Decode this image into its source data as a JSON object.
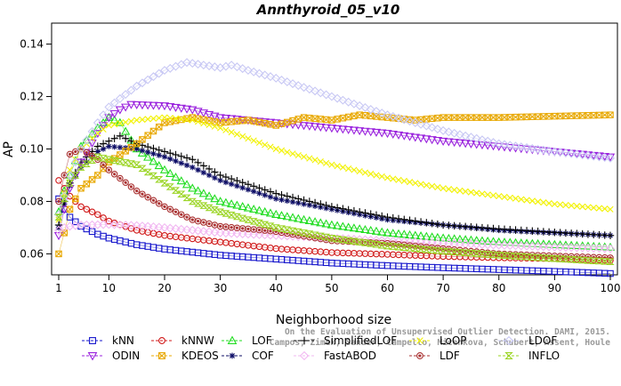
{
  "chart_data": {
    "type": "line",
    "title": "Annthyroid_05_v10",
    "xlabel": "Neighborhood size",
    "ylabel": "AP",
    "xlim": [
      0,
      100
    ],
    "ylim": [
      0.052,
      0.148
    ],
    "x_ticks": [
      1,
      10,
      20,
      30,
      40,
      50,
      60,
      70,
      80,
      90,
      100
    ],
    "y_ticks": [
      0.06,
      0.08,
      0.1,
      0.12,
      0.14
    ],
    "grid": false,
    "legend_placement": "bottom",
    "annotation": [
      "Campos, Zimek, Sander, Campello, Micenkova, Schubert, Assent, Houle",
      "On the Evaluation of Unsupervised Outlier Detection. DAMI, 2015."
    ],
    "series": [
      {
        "name": "kNN",
        "color": "#1515cc",
        "marker": "square",
        "points": [
          [
            1,
            0.081
          ],
          [
            2,
            0.077
          ],
          [
            3,
            0.074
          ],
          [
            5,
            0.0705
          ],
          [
            8,
            0.0675
          ],
          [
            10,
            0.066
          ],
          [
            15,
            0.0635
          ],
          [
            20,
            0.0618
          ],
          [
            30,
            0.0595
          ],
          [
            40,
            0.058
          ],
          [
            50,
            0.0565
          ],
          [
            60,
            0.0555
          ],
          [
            70,
            0.0547
          ],
          [
            80,
            0.054
          ],
          [
            90,
            0.0533
          ],
          [
            100,
            0.0525
          ]
        ]
      },
      {
        "name": "kNNW",
        "color": "#d01818",
        "marker": "circle",
        "points": [
          [
            1,
            0.088
          ],
          [
            2,
            0.085
          ],
          [
            3,
            0.082
          ],
          [
            5,
            0.078
          ],
          [
            8,
            0.075
          ],
          [
            10,
            0.0725
          ],
          [
            15,
            0.069
          ],
          [
            20,
            0.067
          ],
          [
            30,
            0.0645
          ],
          [
            40,
            0.062
          ],
          [
            50,
            0.0605
          ],
          [
            60,
            0.0598
          ],
          [
            70,
            0.059
          ],
          [
            80,
            0.0585
          ],
          [
            90,
            0.0582
          ],
          [
            100,
            0.0575
          ]
        ]
      },
      {
        "name": "LOF",
        "color": "#22dd22",
        "marker": "triangle-up",
        "points": [
          [
            1,
            0.076
          ],
          [
            2,
            0.084
          ],
          [
            3,
            0.09
          ],
          [
            5,
            0.101
          ],
          [
            8,
            0.108
          ],
          [
            10,
            0.112
          ],
          [
            12,
            0.11
          ],
          [
            15,
            0.1
          ],
          [
            20,
            0.092
          ],
          [
            25,
            0.085
          ],
          [
            30,
            0.08
          ],
          [
            40,
            0.075
          ],
          [
            50,
            0.071
          ],
          [
            60,
            0.068
          ],
          [
            70,
            0.066
          ],
          [
            80,
            0.0645
          ],
          [
            90,
            0.0635
          ],
          [
            100,
            0.0625
          ]
        ]
      },
      {
        "name": "COF",
        "color": "#0c0c66",
        "marker": "asterisk",
        "points": [
          [
            1,
            0.07
          ],
          [
            2,
            0.079
          ],
          [
            3,
            0.086
          ],
          [
            5,
            0.093
          ],
          [
            8,
            0.099
          ],
          [
            10,
            0.101
          ],
          [
            15,
            0.1
          ],
          [
            20,
            0.097
          ],
          [
            25,
            0.093
          ],
          [
            30,
            0.088
          ],
          [
            40,
            0.081
          ],
          [
            50,
            0.077
          ],
          [
            60,
            0.073
          ],
          [
            70,
            0.071
          ],
          [
            80,
            0.069
          ],
          [
            90,
            0.068
          ],
          [
            100,
            0.067
          ]
        ]
      },
      {
        "name": "SimplifiedLOF",
        "color": "#000000",
        "marker": "plus",
        "points": [
          [
            1,
            0.071
          ],
          [
            2,
            0.08
          ],
          [
            3,
            0.087
          ],
          [
            5,
            0.095
          ],
          [
            8,
            0.101
          ],
          [
            10,
            0.103
          ],
          [
            12,
            0.105
          ],
          [
            15,
            0.102
          ],
          [
            20,
            0.099
          ],
          [
            25,
            0.096
          ],
          [
            30,
            0.09
          ],
          [
            40,
            0.083
          ],
          [
            50,
            0.078
          ],
          [
            60,
            0.074
          ],
          [
            70,
            0.071
          ],
          [
            80,
            0.0695
          ],
          [
            90,
            0.0682
          ],
          [
            100,
            0.067
          ]
        ]
      },
      {
        "name": "ODIN",
        "color": "#9a22dd",
        "marker": "triangle-down",
        "points": [
          [
            1,
            0.067
          ],
          [
            2,
            0.077
          ],
          [
            3,
            0.085
          ],
          [
            5,
            0.095
          ],
          [
            8,
            0.106
          ],
          [
            10,
            0.112
          ],
          [
            12,
            0.115
          ],
          [
            14,
            0.117
          ],
          [
            20,
            0.1165
          ],
          [
            25,
            0.115
          ],
          [
            30,
            0.112
          ],
          [
            40,
            0.11
          ],
          [
            50,
            0.108
          ],
          [
            60,
            0.106
          ],
          [
            70,
            0.103
          ],
          [
            80,
            0.101
          ],
          [
            90,
            0.099
          ],
          [
            100,
            0.097
          ]
        ]
      },
      {
        "name": "KDEOS",
        "color": "#e8a800",
        "marker": "boxed-x",
        "points": [
          [
            1,
            0.06
          ],
          [
            2,
            0.068
          ],
          [
            3,
            0.077
          ],
          [
            5,
            0.085
          ],
          [
            8,
            0.09
          ],
          [
            10,
            0.095
          ],
          [
            15,
            0.102
          ],
          [
            20,
            0.11
          ],
          [
            25,
            0.112
          ],
          [
            30,
            0.11
          ],
          [
            35,
            0.111
          ],
          [
            40,
            0.109
          ],
          [
            45,
            0.112
          ],
          [
            50,
            0.111
          ],
          [
            55,
            0.113
          ],
          [
            60,
            0.112
          ],
          [
            65,
            0.111
          ],
          [
            70,
            0.112
          ],
          [
            80,
            0.112
          ],
          [
            90,
            0.1125
          ],
          [
            100,
            0.113
          ]
        ]
      },
      {
        "name": "FastABOD",
        "color": "#f2b8f2",
        "marker": "diamond",
        "points": [
          [
            1,
            0.069
          ],
          [
            2,
            0.07
          ],
          [
            3,
            0.0705
          ],
          [
            5,
            0.071
          ],
          [
            10,
            0.0712
          ],
          [
            15,
            0.0708
          ],
          [
            20,
            0.07
          ],
          [
            30,
            0.068
          ],
          [
            40,
            0.067
          ],
          [
            50,
            0.066
          ],
          [
            60,
            0.065
          ],
          [
            70,
            0.064
          ],
          [
            80,
            0.0633
          ],
          [
            90,
            0.0626
          ],
          [
            100,
            0.062
          ]
        ]
      },
      {
        "name": "LoOP",
        "color": "#f2f200",
        "marker": "x",
        "points": [
          [
            1,
            0.073
          ],
          [
            2,
            0.083
          ],
          [
            3,
            0.092
          ],
          [
            5,
            0.1
          ],
          [
            8,
            0.106
          ],
          [
            10,
            0.109
          ],
          [
            15,
            0.111
          ],
          [
            20,
            0.112
          ],
          [
            25,
            0.111
          ],
          [
            30,
            0.108
          ],
          [
            40,
            0.1
          ],
          [
            50,
            0.094
          ],
          [
            60,
            0.089
          ],
          [
            70,
            0.085
          ],
          [
            80,
            0.082
          ],
          [
            90,
            0.079
          ],
          [
            100,
            0.077
          ]
        ]
      },
      {
        "name": "LDF",
        "color": "#aa3333",
        "marker": "circle-dot",
        "points": [
          [
            1,
            0.08
          ],
          [
            2,
            0.09
          ],
          [
            3,
            0.098
          ],
          [
            5,
            0.1
          ],
          [
            8,
            0.096
          ],
          [
            10,
            0.092
          ],
          [
            15,
            0.084
          ],
          [
            20,
            0.078
          ],
          [
            25,
            0.073
          ],
          [
            30,
            0.0705
          ],
          [
            40,
            0.0685
          ],
          [
            50,
            0.065
          ],
          [
            60,
            0.064
          ],
          [
            70,
            0.062
          ],
          [
            80,
            0.06
          ],
          [
            90,
            0.0592
          ],
          [
            100,
            0.0585
          ]
        ]
      },
      {
        "name": "LDOF",
        "color": "#c8c8f4",
        "marker": "diamond",
        "points": [
          [
            1,
            0.075
          ],
          [
            2,
            0.082
          ],
          [
            3,
            0.09
          ],
          [
            5,
            0.1
          ],
          [
            8,
            0.11
          ],
          [
            10,
            0.116
          ],
          [
            15,
            0.124
          ],
          [
            20,
            0.13
          ],
          [
            24,
            0.133
          ],
          [
            27,
            0.132
          ],
          [
            30,
            0.131
          ],
          [
            32,
            0.132
          ],
          [
            35,
            0.13
          ],
          [
            40,
            0.127
          ],
          [
            50,
            0.12
          ],
          [
            60,
            0.113
          ],
          [
            70,
            0.107
          ],
          [
            80,
            0.102
          ],
          [
            90,
            0.099
          ],
          [
            100,
            0.0965
          ]
        ]
      },
      {
        "name": "INFLO",
        "color": "#9ad422",
        "marker": "hourglass",
        "points": [
          [
            1,
            0.074
          ],
          [
            2,
            0.081
          ],
          [
            3,
            0.087
          ],
          [
            5,
            0.093
          ],
          [
            8,
            0.097
          ],
          [
            10,
            0.096
          ],
          [
            15,
            0.094
          ],
          [
            20,
            0.087
          ],
          [
            25,
            0.08
          ],
          [
            30,
            0.076
          ],
          [
            40,
            0.07
          ],
          [
            50,
            0.066
          ],
          [
            60,
            0.063
          ],
          [
            70,
            0.061
          ],
          [
            80,
            0.0595
          ],
          [
            90,
            0.0582
          ],
          [
            100,
            0.057
          ]
        ]
      }
    ]
  }
}
